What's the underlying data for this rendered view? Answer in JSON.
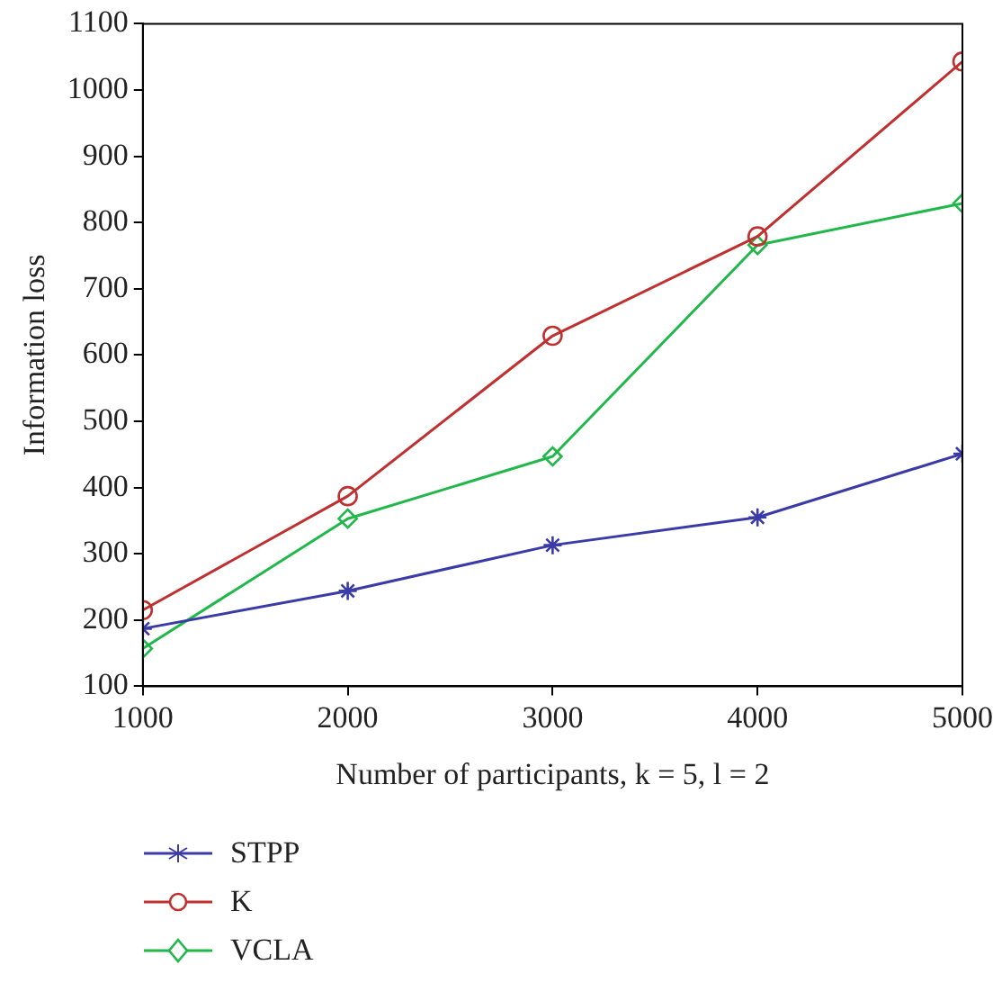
{
  "chart_data": {
    "type": "line",
    "xlabel": "Number of participants, k = 5, l = 2",
    "ylabel": "Information loss",
    "x": [
      1000,
      2000,
      3000,
      4000,
      5000
    ],
    "series": [
      {
        "name": "STPP",
        "color": "#3b3ba8",
        "marker": "cross",
        "values": [
          187,
          244,
          313,
          355,
          451
        ]
      },
      {
        "name": "K",
        "color": "#c03030",
        "marker": "circle",
        "values": [
          215,
          387,
          629,
          779,
          1043
        ]
      },
      {
        "name": "VCLA",
        "color": "#20b84a",
        "marker": "diamond",
        "values": [
          157,
          353,
          447,
          766,
          829
        ]
      }
    ],
    "xlim": [
      1000,
      5000
    ],
    "xticks": [
      1000,
      2000,
      3000,
      4000,
      5000
    ],
    "ylim": [
      100,
      1100
    ],
    "yticks": [
      100,
      200,
      300,
      400,
      500,
      600,
      700,
      800,
      900,
      1000,
      1100
    ],
    "grid": false,
    "legend": "bottom left",
    "line_style": "solid"
  }
}
